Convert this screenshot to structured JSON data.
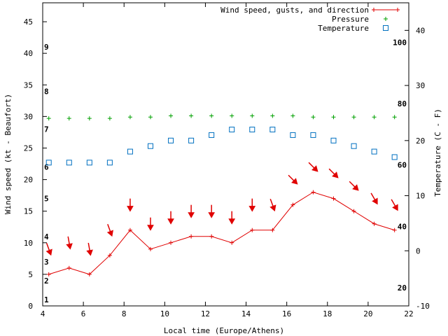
{
  "chart_data": {
    "type": "line",
    "title": "",
    "xlabel": "Local time (Europe/Athens)",
    "ylabel": "Wind speed (kt - Beaufort)",
    "y2label": "Temperature (C - F)",
    "xlim": [
      4,
      22
    ],
    "ylim": [
      0,
      48
    ],
    "y2lim": [
      -10,
      45
    ],
    "grid": false,
    "legend_position": "top-right",
    "x_ticks": [
      4,
      6,
      8,
      10,
      12,
      14,
      16,
      18,
      20,
      22
    ],
    "y_ticks": [
      0,
      5,
      10,
      15,
      20,
      25,
      30,
      35,
      40,
      45
    ],
    "y2_ticks": [
      -10,
      0,
      10,
      20,
      30,
      40
    ],
    "beaufort_labels": [
      {
        "label": "1",
        "y": 1
      },
      {
        "label": "2",
        "y": 4
      },
      {
        "label": "3",
        "y": 7
      },
      {
        "label": "4",
        "y": 11
      },
      {
        "label": "5",
        "y": 17
      },
      {
        "label": "6",
        "y": 22
      },
      {
        "label": "7",
        "y": 28
      },
      {
        "label": "8",
        "y": 34
      },
      {
        "label": "9",
        "y": 41
      }
    ],
    "fahrenheit_labels": [
      {
        "label": "20",
        "t": -6.7
      },
      {
        "label": "40",
        "t": 4.4
      },
      {
        "label": "60",
        "t": 15.6
      },
      {
        "label": "80",
        "t": 26.7
      },
      {
        "label": "100",
        "t": 37.8
      }
    ],
    "series": [
      {
        "name": "Wind speed, gusts, and direction",
        "color": "#e00000",
        "x": [
          4.3,
          5.3,
          6.3,
          7.3,
          8.3,
          9.3,
          10.3,
          11.3,
          12.3,
          13.3,
          14.3,
          15.3,
          16.3,
          17.3,
          18.3,
          19.3,
          20.3,
          21.3
        ],
        "values": [
          5,
          6,
          5,
          8,
          12,
          9,
          10,
          11,
          11,
          10,
          12,
          12,
          16,
          18,
          17,
          15,
          13,
          12
        ],
        "arrows_y": [
          9,
          10,
          9,
          12,
          16,
          13,
          14,
          15,
          15,
          14,
          16,
          16,
          20,
          22,
          21,
          19,
          17,
          16
        ],
        "arrows_dir": [
          160,
          170,
          170,
          160,
          180,
          180,
          180,
          180,
          180,
          180,
          180,
          160,
          135,
          135,
          135,
          135,
          150,
          150
        ]
      },
      {
        "name": "Pressure",
        "color": "#00a000",
        "x": [
          4.3,
          5.3,
          6.3,
          7.3,
          8.3,
          9.3,
          10.3,
          11.3,
          12.3,
          13.3,
          14.3,
          15.3,
          16.3,
          17.3,
          18.3,
          19.3,
          20.3,
          21.3
        ],
        "values": [
          29.7,
          29.7,
          29.7,
          29.7,
          29.9,
          29.9,
          30.1,
          30.1,
          30.1,
          30.1,
          30.1,
          30.1,
          30.1,
          29.9,
          29.9,
          29.9,
          29.9,
          29.9
        ]
      },
      {
        "name": "Temperature",
        "color": "#0070c0",
        "axis": "y2",
        "x": [
          4.3,
          5.3,
          6.3,
          7.3,
          8.3,
          9.3,
          10.3,
          11.3,
          12.3,
          13.3,
          14.3,
          15.3,
          16.3,
          17.3,
          18.3,
          19.3,
          20.3,
          21.3
        ],
        "values": [
          16,
          16,
          16,
          16,
          18,
          19,
          20,
          20,
          21,
          22,
          22,
          22,
          21,
          21,
          20,
          19,
          18,
          17
        ]
      }
    ]
  }
}
